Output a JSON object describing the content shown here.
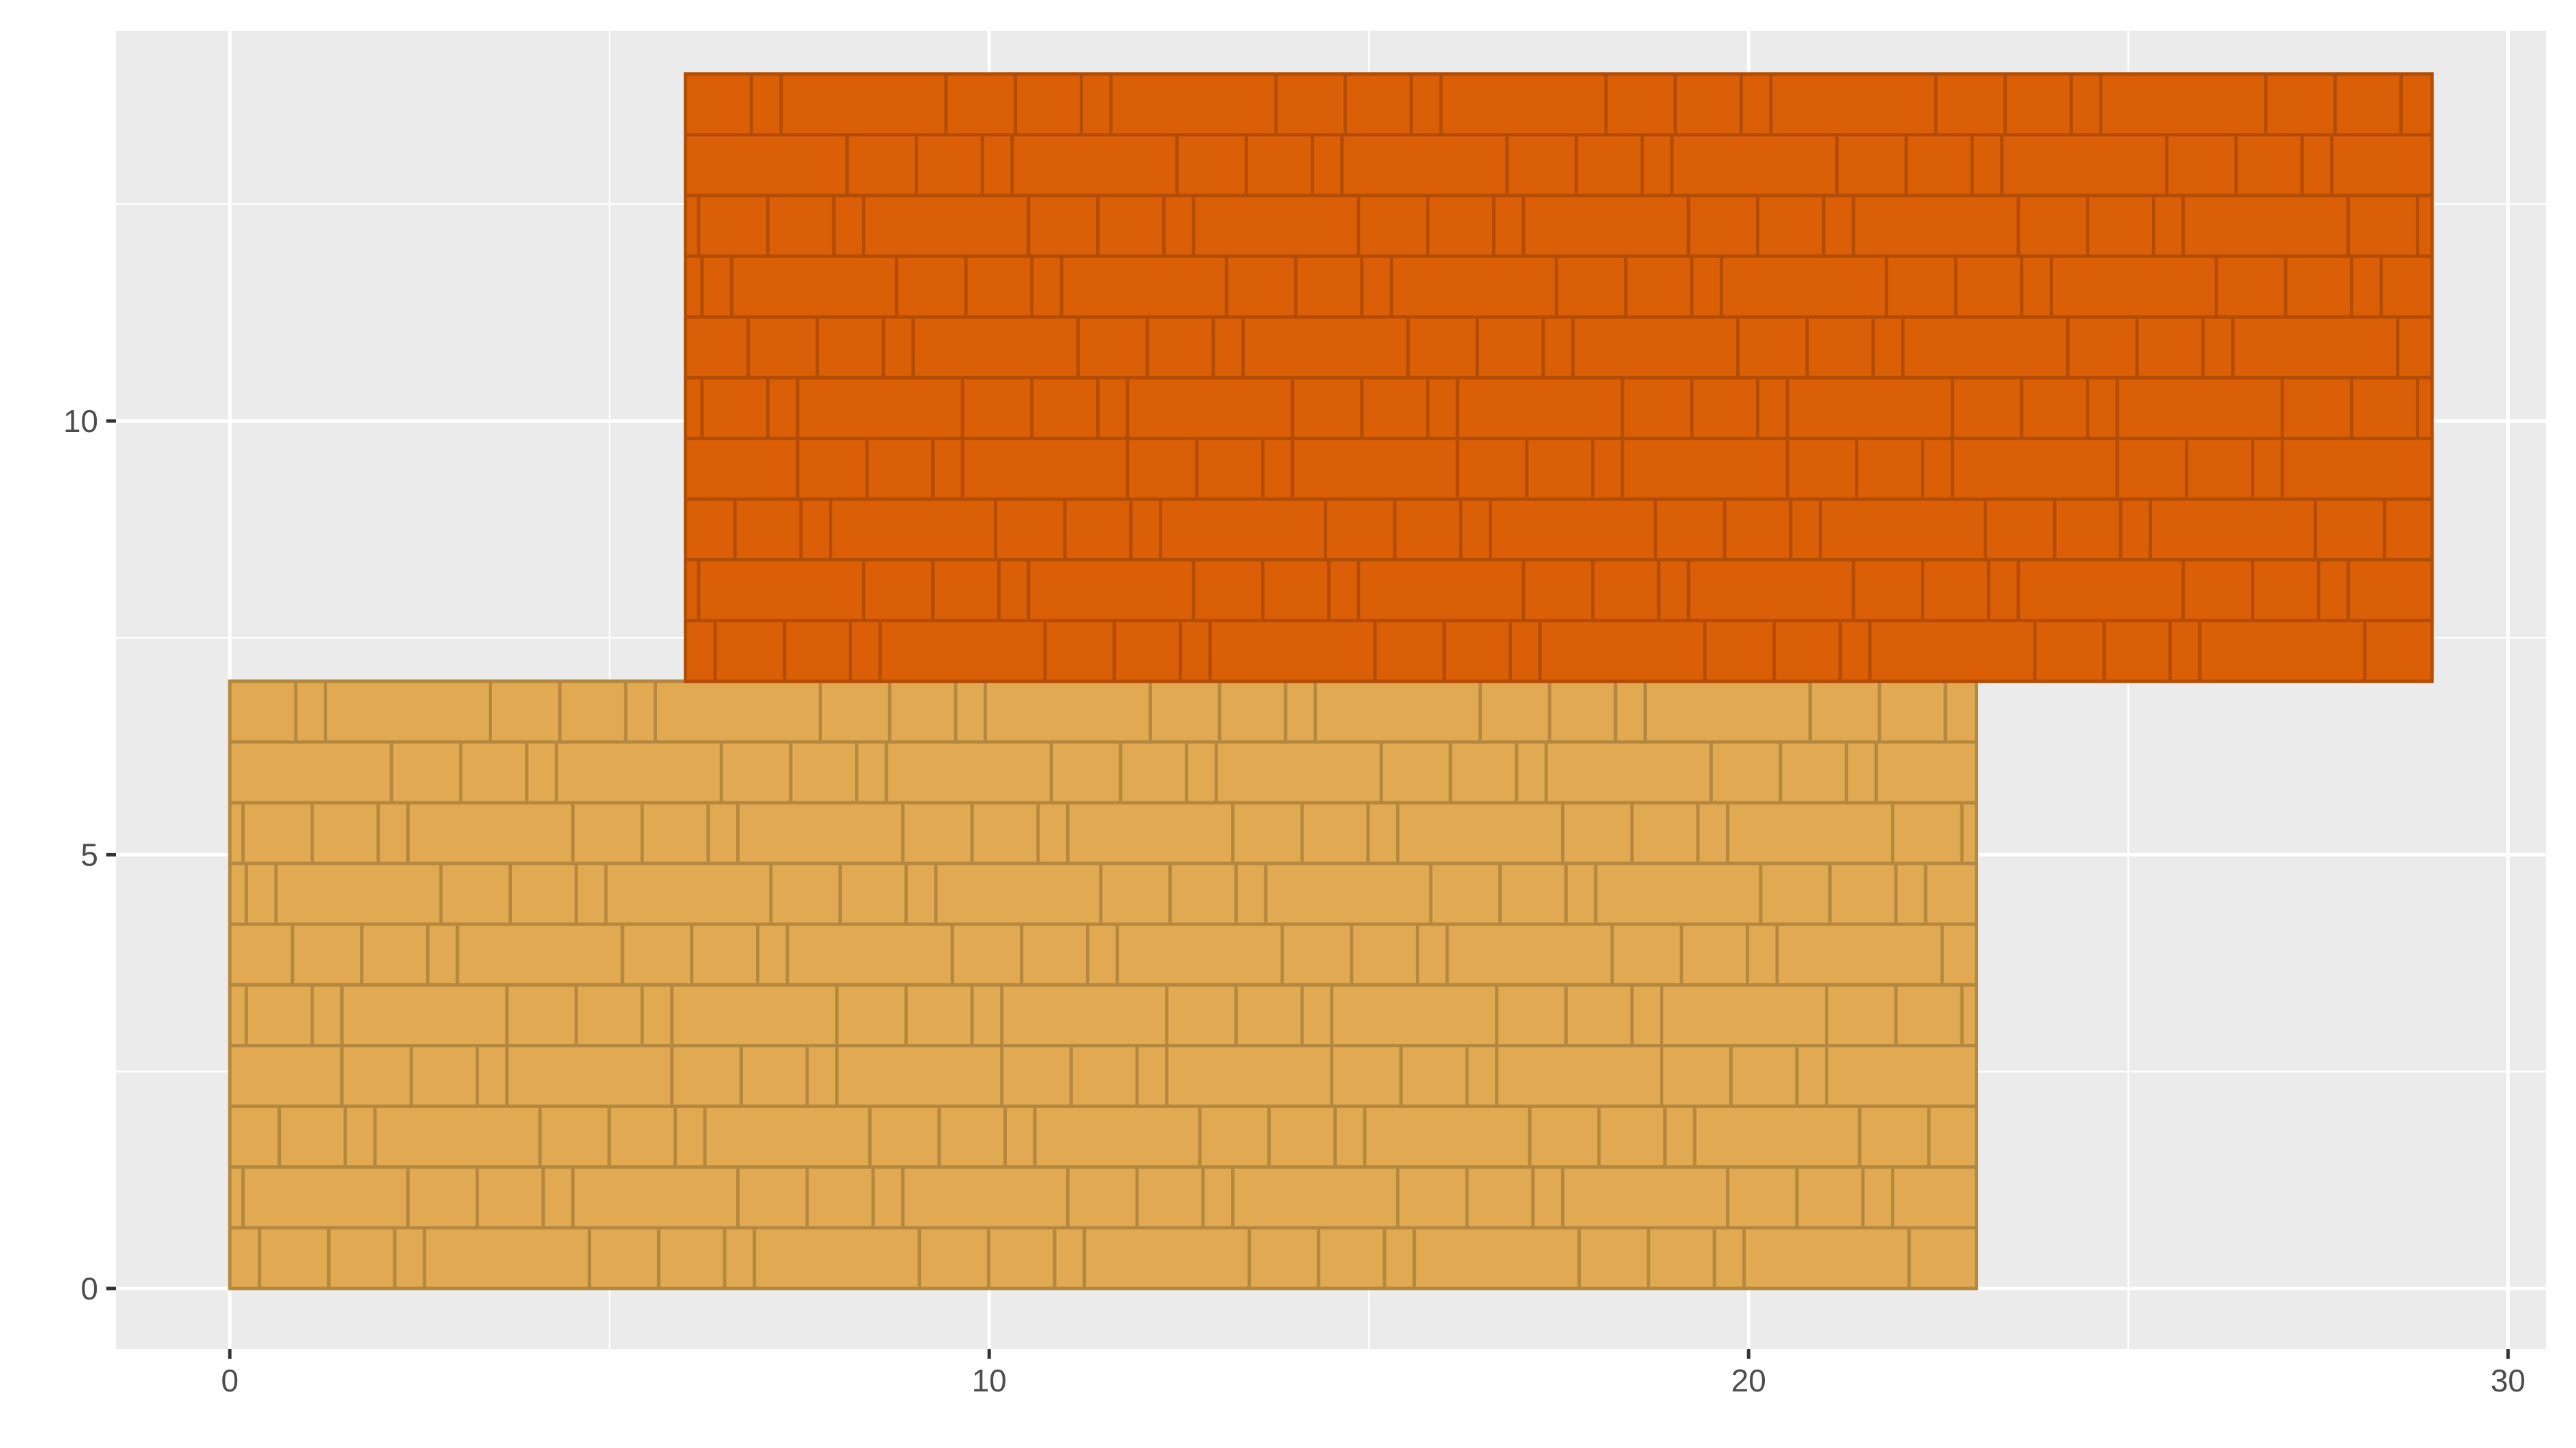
{
  "chart_data": {
    "type": "rect",
    "title": "",
    "xlabel": "",
    "ylabel": "",
    "xlim": [
      -1.5,
      30.5
    ],
    "ylim": [
      -0.7,
      14.5
    ],
    "x_ticks": [
      0,
      10,
      20,
      30
    ],
    "x_tick_labels": [
      "0",
      "10",
      "20",
      "30"
    ],
    "y_ticks": [
      0,
      5,
      10
    ],
    "y_tick_labels": [
      "0",
      "5",
      "10"
    ],
    "grid": true,
    "legend": "none",
    "pattern": "brick",
    "rects": [
      {
        "xmin": 0,
        "xmax": 23,
        "ymin": 0,
        "ymax": 7,
        "fill": "#E1A951",
        "line": "#B5883F"
      },
      {
        "xmin": 6,
        "xmax": 29,
        "ymin": 7,
        "ymax": 14,
        "fill": "#DA5F06",
        "line": "#B34D05"
      }
    ]
  },
  "colors": {
    "panel_background": "#EBEBEB",
    "grid_major": "#FFFFFF",
    "axis_tick": "#333333",
    "tick_text": "#4D4D4D"
  }
}
